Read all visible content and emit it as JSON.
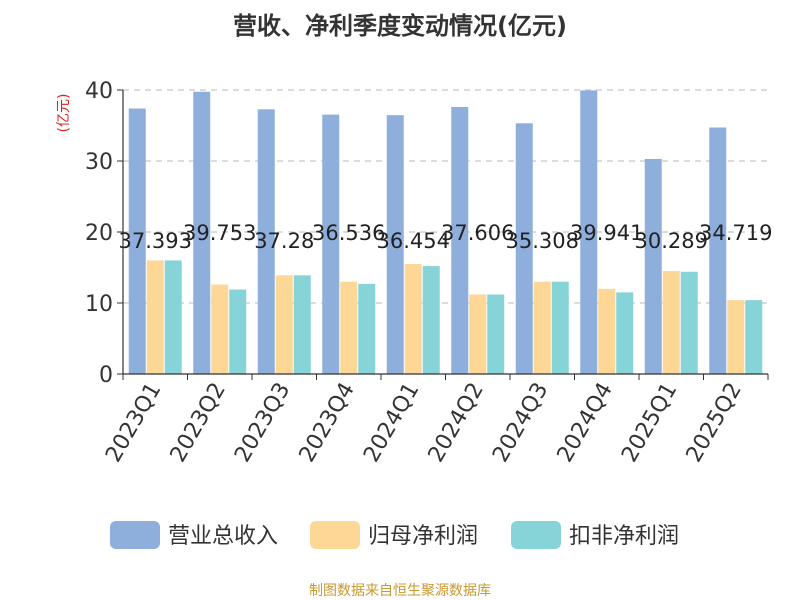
{
  "chart_data": {
    "type": "bar",
    "title": "营收、净利季度变动情况(亿元)",
    "ylabel": "(亿元)",
    "xlabel": "",
    "ylim": [
      0,
      40
    ],
    "yticks": [
      0,
      10,
      20,
      30,
      40
    ],
    "grid": true,
    "legend_position": "bottom",
    "categories": [
      "2023Q1",
      "2023Q2",
      "2023Q3",
      "2023Q4",
      "2024Q1",
      "2024Q2",
      "2024Q3",
      "2024Q4",
      "2025Q1",
      "2025Q2"
    ],
    "series": [
      {
        "name": "营业总收入",
        "color": "#8eaedc",
        "values": [
          37.393,
          39.753,
          37.28,
          36.536,
          36.454,
          37.606,
          35.308,
          39.941,
          30.289,
          34.719
        ],
        "labels": [
          "37.393",
          "39.753",
          "37.28",
          "36.536",
          "36.454",
          "37.606",
          "35.308",
          "39.941",
          "30.289",
          "34.719"
        ]
      },
      {
        "name": "归母净利润",
        "color": "#fdd795",
        "values": [
          16.0,
          12.6,
          13.9,
          13.0,
          15.5,
          11.2,
          13.0,
          12.0,
          14.5,
          10.4
        ]
      },
      {
        "name": "扣非净利润",
        "color": "#87d4d8",
        "values": [
          16.0,
          11.9,
          13.9,
          12.7,
          15.2,
          11.2,
          13.0,
          11.5,
          14.4,
          10.4
        ]
      }
    ]
  },
  "axis_label_color": "#e02020",
  "footer": {
    "source": "制图数据来自恒生聚源数据库",
    "color": "#c9982e"
  }
}
